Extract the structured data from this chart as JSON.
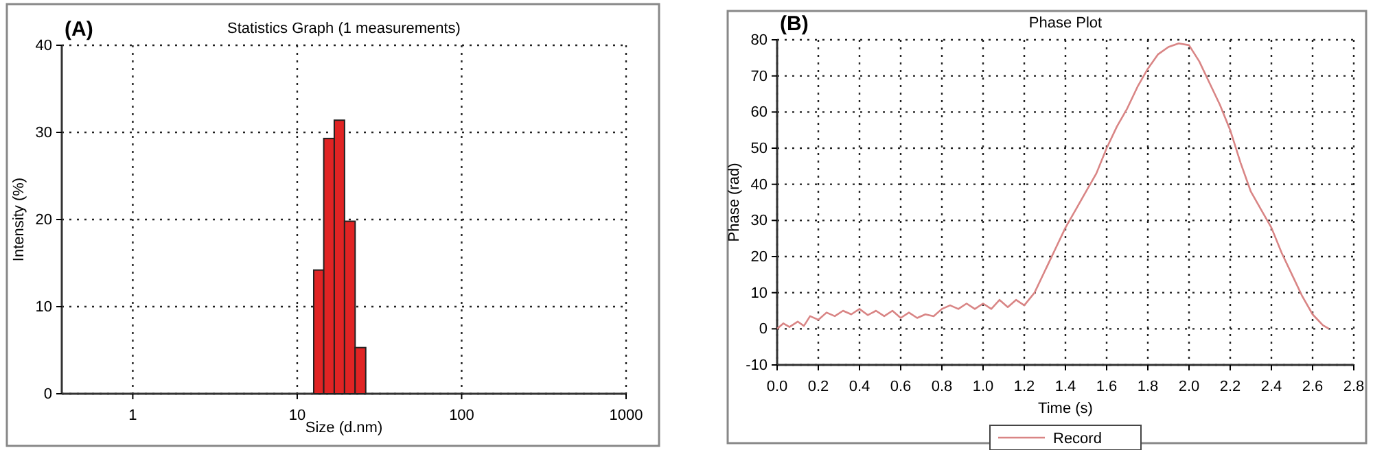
{
  "chart_data": [
    {
      "type": "histogram",
      "title": "Statistics Graph (1 measurements)",
      "xlabel": "Size (d.nm)",
      "ylabel": "Intensity (%)",
      "annotations": [
        "(A)"
      ],
      "log": "x",
      "bins": [
        12.6,
        14.5,
        16.8,
        19.4,
        22.5,
        26.1
      ],
      "values": [
        14.2,
        29.3,
        31.4,
        19.8,
        5.3
      ],
      "color": "#e02424",
      "xlim": [
        0.37,
        1000
      ],
      "xticks": [
        1,
        10,
        100,
        1000
      ],
      "ylim": [
        0,
        40
      ],
      "yticks": [
        0,
        10,
        20,
        30,
        40
      ],
      "grid": true
    },
    {
      "type": "line",
      "title": "Phase Plot",
      "xlabel": "Time (s)",
      "ylabel": "Phase (rad)",
      "annotations": [
        "(B)"
      ],
      "legend": "bottom",
      "grid": true,
      "line_style": "solid",
      "xlim": [
        0,
        2.8
      ],
      "xticks": [
        {
          "value": 0,
          "label": "0.0"
        },
        0.2,
        0.4,
        0.6,
        0.8,
        {
          "value": 1,
          "label": "1.0"
        },
        1.2,
        1.4,
        1.6,
        1.8,
        {
          "value": 2,
          "label": "2.0"
        },
        2.2,
        2.4,
        2.6,
        2.8
      ],
      "ylim": [
        -10,
        80
      ],
      "yticks": [
        -10,
        0,
        10,
        20,
        30,
        40,
        50,
        60,
        70,
        80
      ],
      "series": [
        {
          "name": "Record",
          "color": "#d98585",
          "x": [
            0,
            0.03,
            0.06,
            0.1,
            0.13,
            0.16,
            0.2,
            0.24,
            0.28,
            0.32,
            0.36,
            0.4,
            0.44,
            0.48,
            0.52,
            0.56,
            0.6,
            0.64,
            0.68,
            0.72,
            0.76,
            0.8,
            0.84,
            0.88,
            0.92,
            0.96,
            1.0,
            1.04,
            1.08,
            1.12,
            1.16,
            1.2,
            1.25,
            1.3,
            1.35,
            1.4,
            1.45,
            1.5,
            1.55,
            1.6,
            1.65,
            1.7,
            1.75,
            1.8,
            1.85,
            1.9,
            1.95,
            2.0,
            2.05,
            2.1,
            2.15,
            2.2,
            2.25,
            2.3,
            2.35,
            2.4,
            2.45,
            2.5,
            2.55,
            2.6,
            2.65,
            2.68
          ],
          "values": [
            0,
            1.5,
            0.5,
            2,
            0.8,
            3.5,
            2.5,
            4.5,
            3.5,
            5,
            4,
            5.5,
            3.8,
            5,
            3.5,
            5,
            3,
            4.5,
            3,
            4,
            3.5,
            5.5,
            6.5,
            5.5,
            7,
            5.5,
            7,
            5.5,
            8,
            6,
            8,
            6.5,
            10,
            16,
            22,
            28,
            33,
            38,
            43,
            50,
            56,
            61,
            67,
            72,
            76,
            78,
            79,
            78.5,
            74,
            68,
            62,
            55,
            46,
            38,
            33,
            28,
            21,
            15,
            9,
            4,
            1,
            0
          ]
        }
      ]
    }
  ]
}
